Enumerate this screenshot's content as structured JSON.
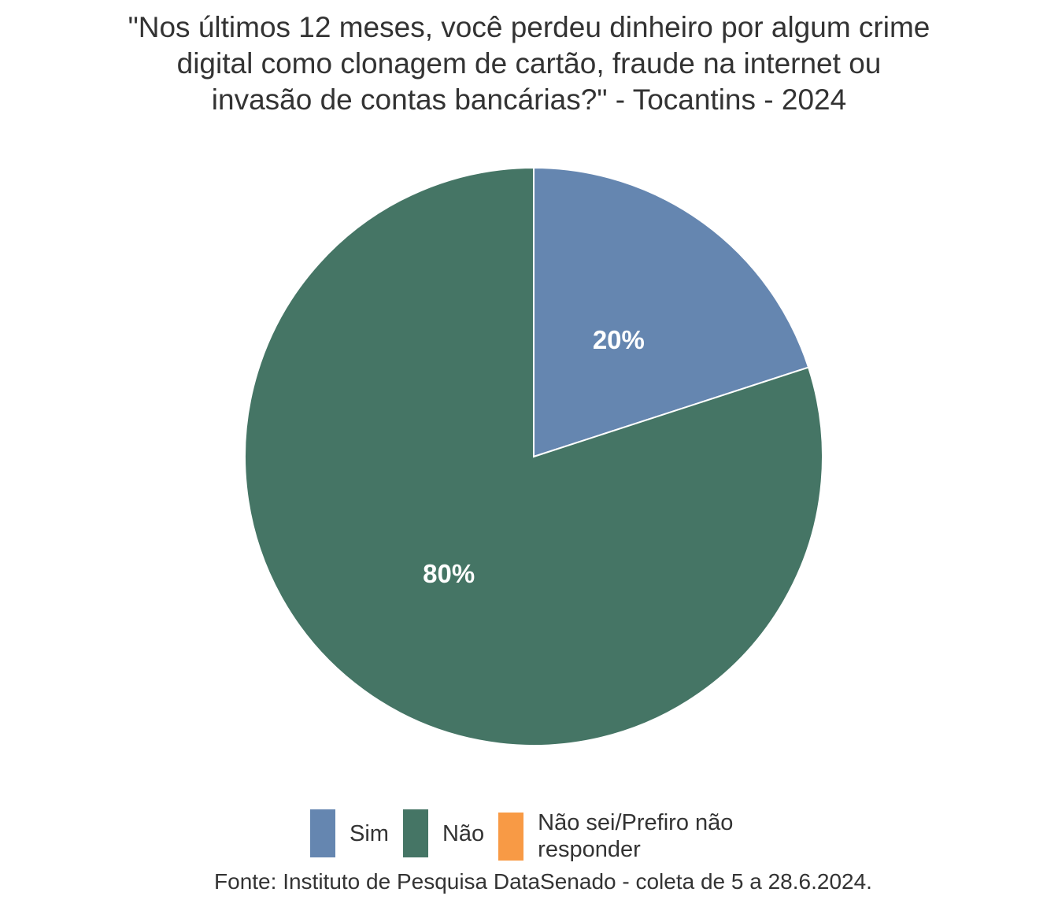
{
  "chart_data": {
    "type": "pie",
    "title_lines": [
      "\"Nos últimos 12 meses, você perdeu dinheiro por algum crime",
      "digital como clonagem de cartão, fraude na internet ou",
      "invasão de contas bancárias?\" - Tocantins - 2024"
    ],
    "slices": [
      {
        "name": "Sim",
        "value": 20,
        "label": "20%",
        "color": "#6586b0"
      },
      {
        "name": "Não",
        "value": 80,
        "label": "80%",
        "color": "#457565"
      },
      {
        "name": "Não sei/Prefiro não responder",
        "value": 0,
        "label": "",
        "color": "#f89a45"
      }
    ],
    "legend": {
      "position": "bottom",
      "items": [
        {
          "label": "Sim",
          "color": "#6586b0"
        },
        {
          "label": "Não",
          "color": "#457565"
        },
        {
          "label_lines": [
            "Não sei/Prefiro não",
            "responder"
          ],
          "color": "#f89a45"
        }
      ]
    },
    "source": "Fonte: Instituto de Pesquisa DataSenado - coleta de 5 a 28.6.2024."
  }
}
